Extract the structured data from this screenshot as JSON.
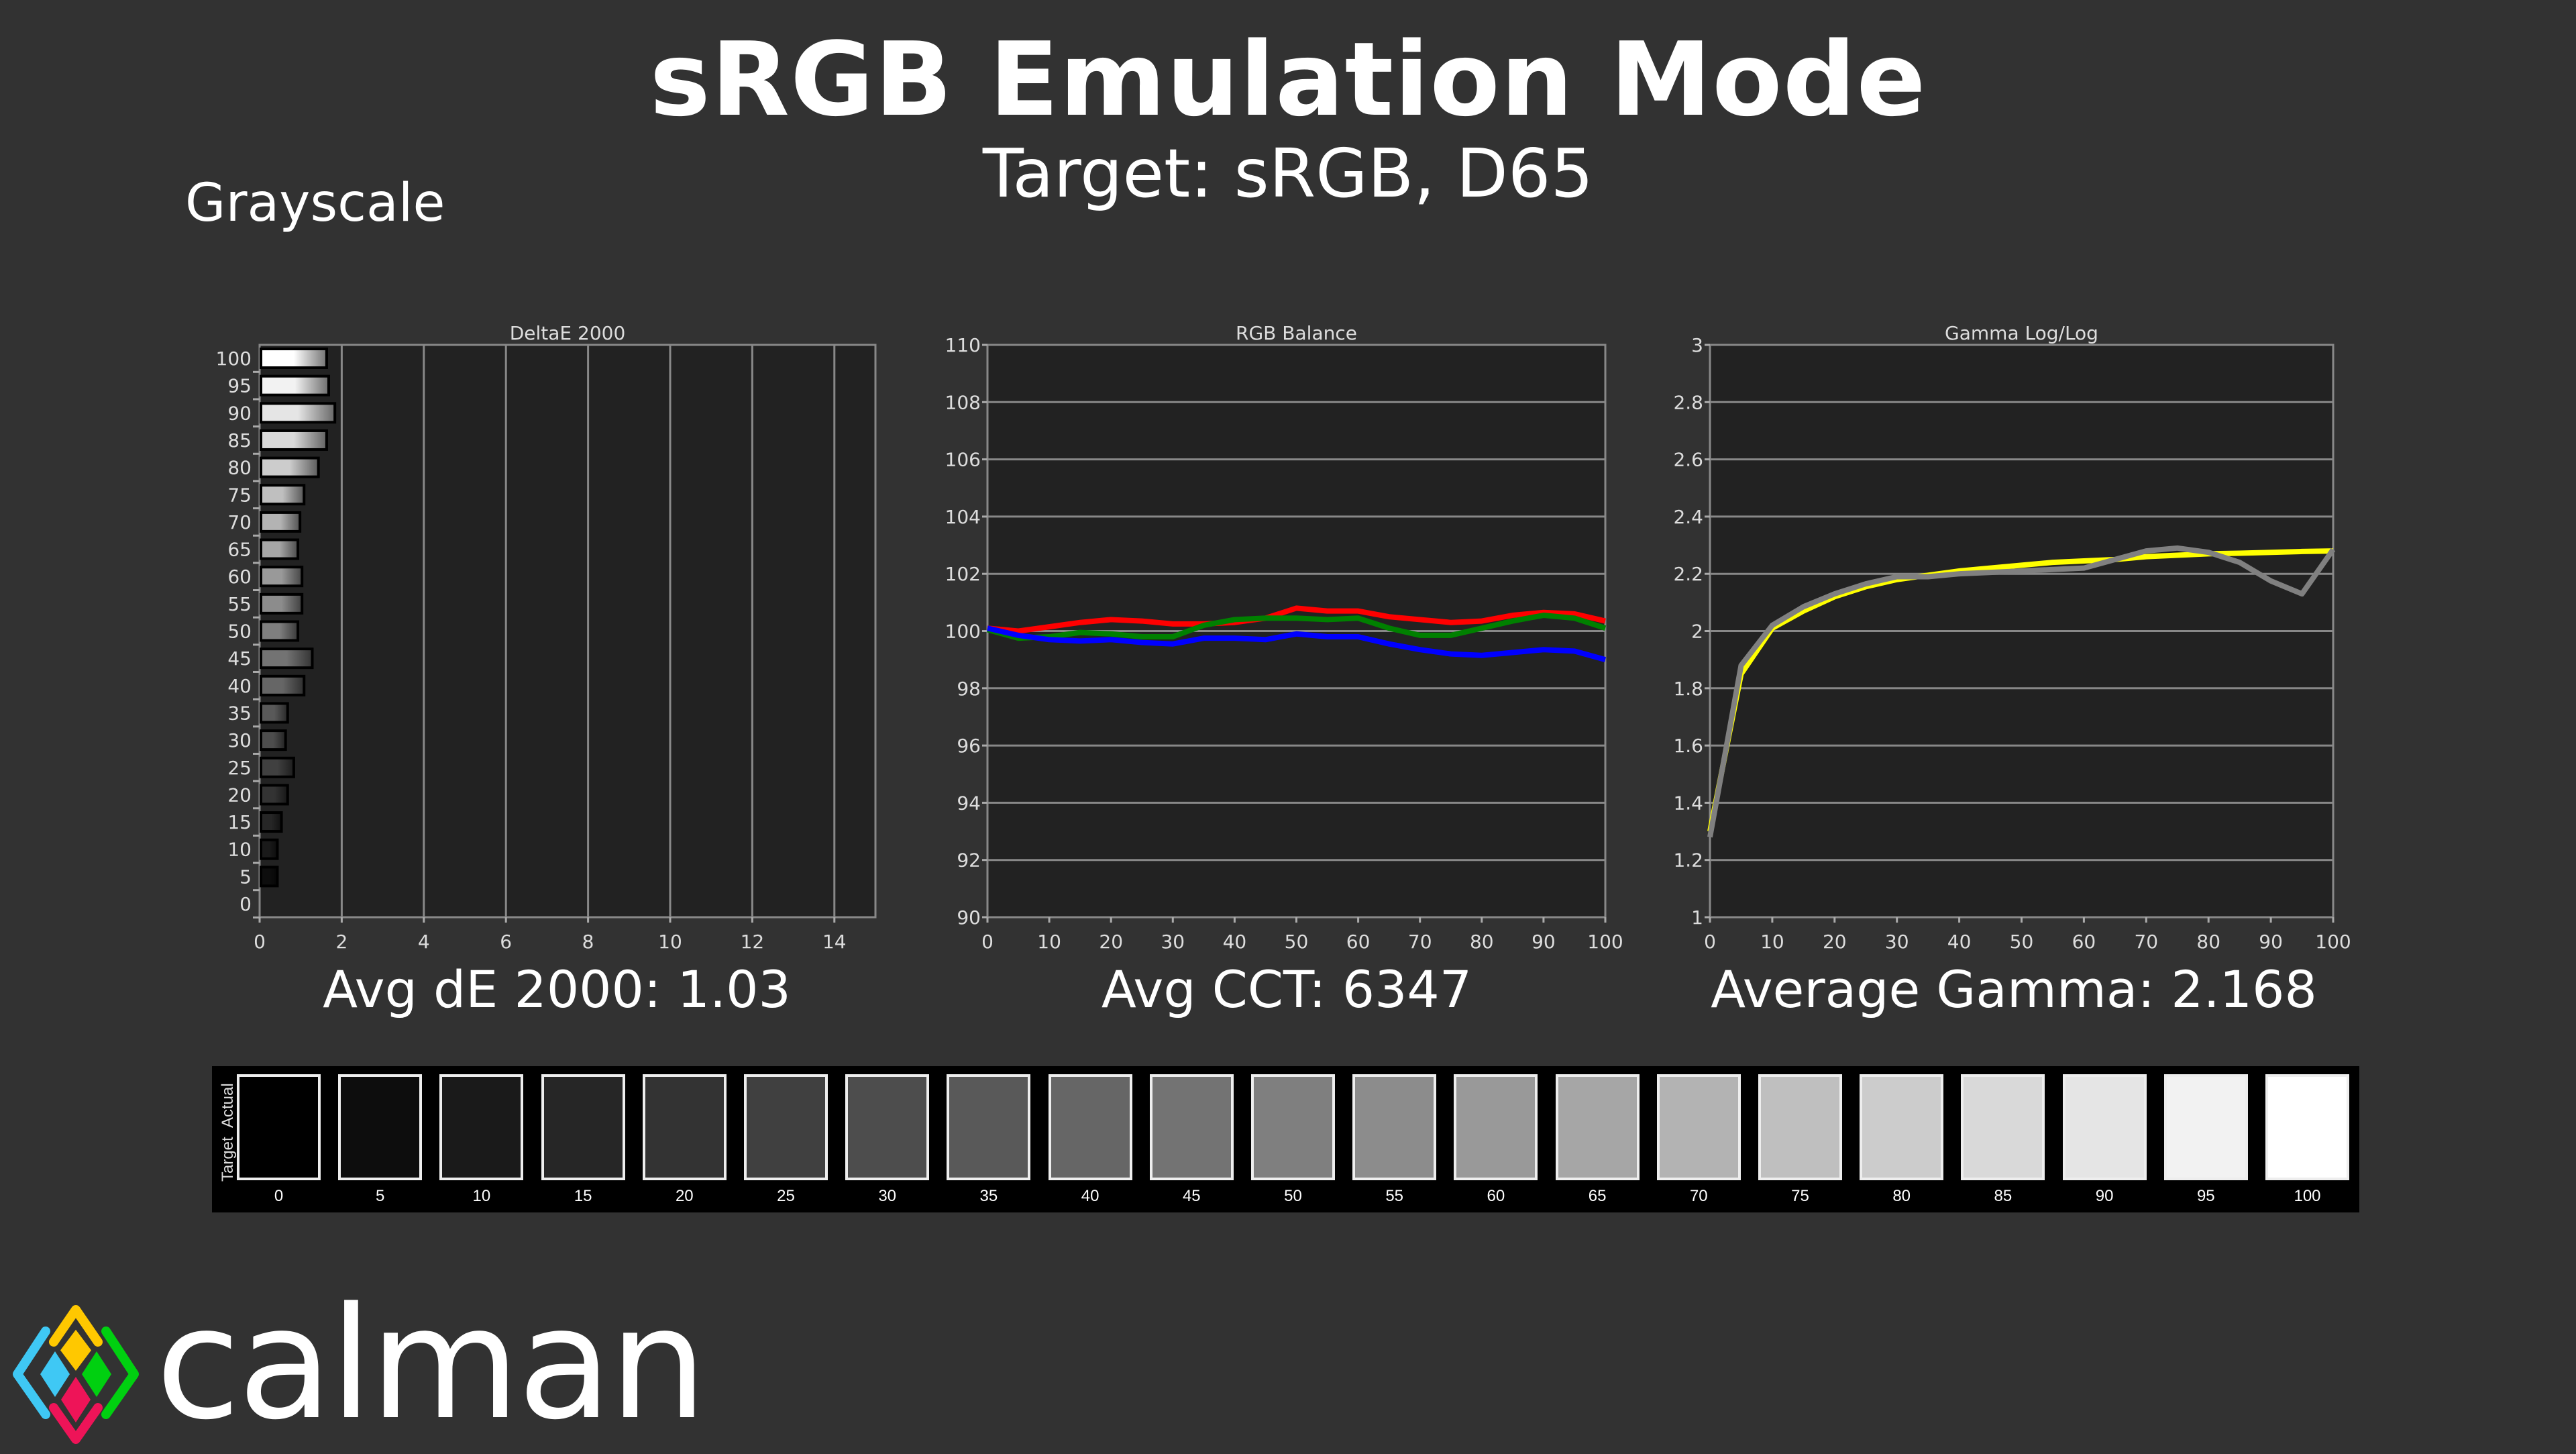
{
  "header": {
    "title": "sRGB Emulation Mode",
    "subtitle": "Target: sRGB, D65",
    "section": "Grayscale"
  },
  "summaries": {
    "delta_e": "Avg dE 2000: 1.03",
    "cct": "Avg CCT: 6347",
    "gamma": "Average Gamma: 2.168"
  },
  "chart_data": [
    {
      "type": "bar",
      "orientation": "horizontal",
      "title": "DeltaE 2000",
      "categories": [
        0,
        5,
        10,
        15,
        20,
        25,
        30,
        35,
        40,
        45,
        50,
        55,
        60,
        65,
        70,
        75,
        80,
        85,
        90,
        95,
        100
      ],
      "values": [
        0,
        0.4,
        0.4,
        0.5,
        0.65,
        0.8,
        0.6,
        0.65,
        1.05,
        1.25,
        0.9,
        1.0,
        1.0,
        0.9,
        0.95,
        1.05,
        1.4,
        1.6,
        1.8,
        1.65,
        1.6
      ],
      "xlim": [
        0,
        15
      ],
      "xticks": [
        0,
        2,
        4,
        6,
        8,
        10,
        12,
        14
      ],
      "grid": true
    },
    {
      "type": "line",
      "title": "RGB Balance",
      "x": [
        0,
        5,
        10,
        15,
        20,
        25,
        30,
        35,
        40,
        45,
        50,
        55,
        60,
        65,
        70,
        75,
        80,
        85,
        90,
        95,
        100
      ],
      "series": [
        {
          "name": "Red",
          "color": "#ff0000",
          "values": [
            100.1,
            100.0,
            100.15,
            100.3,
            100.4,
            100.35,
            100.25,
            100.25,
            100.3,
            100.45,
            100.8,
            100.7,
            100.7,
            100.5,
            100.4,
            100.3,
            100.35,
            100.55,
            100.65,
            100.6,
            100.35
          ]
        },
        {
          "name": "Green",
          "color": "#008000",
          "values": [
            100.05,
            99.75,
            99.8,
            99.95,
            99.9,
            99.8,
            99.8,
            100.2,
            100.4,
            100.45,
            100.45,
            100.4,
            100.45,
            100.1,
            99.85,
            99.85,
            100.1,
            100.35,
            100.55,
            100.45,
            100.1
          ]
        },
        {
          "name": "Blue",
          "color": "#0000ff",
          "values": [
            100.1,
            99.85,
            99.7,
            99.65,
            99.7,
            99.6,
            99.55,
            99.75,
            99.75,
            99.7,
            99.9,
            99.8,
            99.8,
            99.55,
            99.35,
            99.2,
            99.15,
            99.25,
            99.35,
            99.3,
            99.0
          ]
        }
      ],
      "xlim": [
        0,
        100
      ],
      "ylim": [
        90,
        110
      ],
      "xticks": [
        0,
        10,
        20,
        30,
        40,
        50,
        60,
        70,
        80,
        90,
        100
      ],
      "yticks": [
        90,
        92,
        94,
        96,
        98,
        100,
        102,
        104,
        106,
        108,
        110
      ],
      "grid": true
    },
    {
      "type": "line",
      "title": "Gamma Log/Log",
      "x": [
        0,
        5,
        10,
        15,
        20,
        25,
        30,
        35,
        40,
        45,
        50,
        55,
        60,
        65,
        70,
        75,
        80,
        85,
        90,
        95,
        100
      ],
      "series": [
        {
          "name": "Target",
          "color": "#ffff00",
          "values": [
            1.3,
            1.85,
            2.01,
            2.07,
            2.12,
            2.155,
            2.18,
            2.195,
            2.21,
            2.22,
            2.23,
            2.24,
            2.245,
            2.25,
            2.26,
            2.265,
            2.27,
            2.272,
            2.275,
            2.278,
            2.28
          ]
        },
        {
          "name": "Actual",
          "color": "#808080",
          "values": [
            1.28,
            1.88,
            2.02,
            2.085,
            2.13,
            2.165,
            2.19,
            2.19,
            2.2,
            2.205,
            2.21,
            2.215,
            2.22,
            2.25,
            2.28,
            2.29,
            2.275,
            2.24,
            2.175,
            2.13,
            2.285
          ]
        }
      ],
      "xlim": [
        0,
        100
      ],
      "ylim": [
        1,
        3
      ],
      "xticks": [
        0,
        10,
        20,
        30,
        40,
        50,
        60,
        70,
        80,
        90,
        100
      ],
      "yticks": [
        1,
        1.2,
        1.4,
        1.6,
        1.8,
        2,
        2.2,
        2.4,
        2.6,
        2.8,
        3
      ],
      "ytick_labels": [
        "1",
        "1.2",
        "1.4",
        "1.6",
        "1.8",
        "2",
        "2.2",
        "2.4",
        "2.6",
        "2.8",
        "3"
      ],
      "grid": true
    }
  ],
  "swatches": {
    "row_labels": [
      "Actual",
      "Target"
    ],
    "levels": [
      0,
      5,
      10,
      15,
      20,
      25,
      30,
      35,
      40,
      45,
      50,
      55,
      60,
      65,
      70,
      75,
      80,
      85,
      90,
      95,
      100
    ]
  },
  "logo": {
    "text": "calman",
    "colors": {
      "yellow": "#ffc800",
      "blue": "#3fc8f4",
      "green": "#00d010",
      "pink": "#ee1458"
    }
  }
}
